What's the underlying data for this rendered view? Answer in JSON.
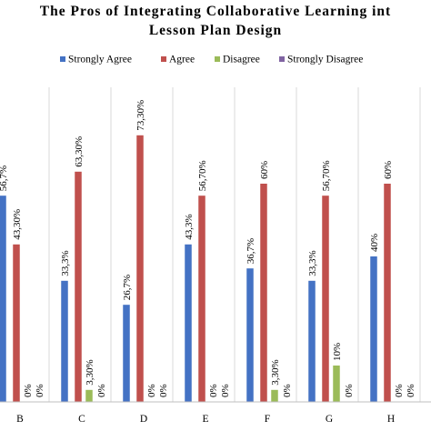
{
  "chart_data": {
    "type": "bar",
    "title_lines": [
      "The Pros of Integrating Collaborative Learning int",
      "Lesson Plan Design"
    ],
    "categories": [
      "B",
      "C",
      "D",
      "E",
      "F",
      "G",
      "H"
    ],
    "ylim": [
      0,
      80
    ],
    "legend_position": "top",
    "grid": false,
    "series": [
      {
        "name": "Strongly Agree",
        "color": "#4472c4",
        "values": [
          56.7,
          33.3,
          26.7,
          43.3,
          36.7,
          33.3,
          40
        ],
        "labels": [
          "56,7%",
          "33,3%",
          "26,7%",
          "43,3%",
          "36,7%",
          "33,3%",
          "40%"
        ]
      },
      {
        "name": "Agree",
        "color": "#c0504d",
        "values": [
          43.3,
          63.3,
          73.3,
          56.7,
          60,
          56.7,
          60
        ],
        "labels": [
          "43,30%",
          "63,30%",
          "73,30%",
          "56,70%",
          "60%",
          "56,70%",
          "60%"
        ]
      },
      {
        "name": "Disagree",
        "color": "#9bbb59",
        "values": [
          0,
          3.3,
          0,
          0,
          3.3,
          10,
          0
        ],
        "labels": [
          "0%",
          "3,30%",
          "0%",
          "0%",
          "3,30%",
          "10%",
          "0%"
        ]
      },
      {
        "name": "Strongly Disagree",
        "color": "#8064a2",
        "values": [
          0,
          0,
          0,
          0,
          0,
          0,
          0
        ],
        "labels": [
          "0%",
          "0%",
          "0%",
          "0%",
          "0%",
          "0%",
          "0%"
        ]
      }
    ]
  }
}
